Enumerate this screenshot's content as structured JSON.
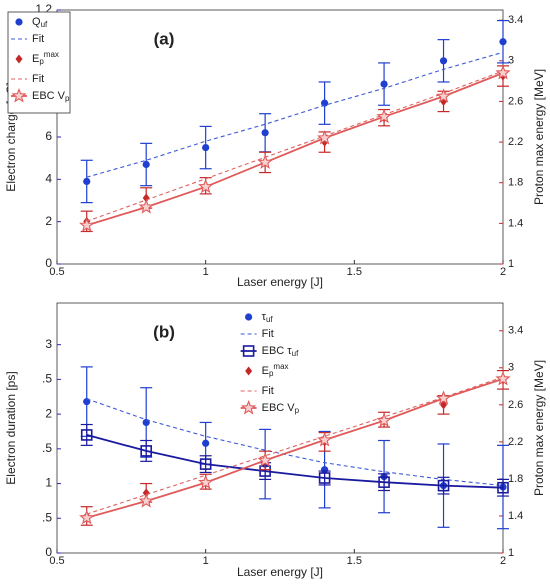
{
  "chart_data": [
    {
      "type": "errorbar",
      "title": "(a)",
      "xlabel": "Laser energy [J]",
      "ylabel": "Electron charge [nC]",
      "y2label": "Proton max energy [MeV]",
      "y_color": "#2a2ab8",
      "y2_color": "#c62828",
      "x": [
        0.6,
        0.8,
        1,
        1.2,
        1.4,
        1.6,
        1.8,
        2
      ],
      "xlim": [
        0.5,
        2
      ],
      "xticks": [
        0.5,
        1,
        1.5,
        2
      ],
      "ylim": [
        0,
        1.2
      ],
      "yticks": [
        0,
        {
          "value": 0.2,
          "label": "2"
        },
        {
          "value": 0.4,
          "label": "4"
        },
        {
          "value": 0.6,
          "label": "6"
        },
        {
          "value": 0.8,
          "label": "8"
        },
        1,
        1.2
      ],
      "y2lim": [
        1,
        3.5
      ],
      "y2ticks": [
        1,
        1.4,
        1.8,
        2.2,
        2.6,
        3,
        3.4
      ],
      "legend": "upper left",
      "legend_frame": true,
      "series": [
        {
          "name": "Q_uf",
          "color": "#1f3fd0",
          "marker": "circle",
          "line": "none",
          "values": [
            0.39,
            0.47,
            0.55,
            0.62,
            0.76,
            0.85,
            0.96,
            1.05
          ],
          "errors": [
            0.1,
            0.1,
            0.1,
            0.09,
            0.1,
            0.1,
            0.1,
            0.1
          ]
        },
        {
          "name": "Fit",
          "color": "#3d5bd6",
          "marker": "none",
          "line": "dashed",
          "values": [
            0.41,
            0.49,
            0.58,
            0.66,
            0.75,
            0.83,
            0.92,
            1.0
          ]
        },
        {
          "name": "E_p^max",
          "color": "#c62828",
          "marker": "diamond",
          "line": "none",
          "axis": "y2",
          "values": [
            1.42,
            1.65,
            1.77,
            2.0,
            2.2,
            2.44,
            2.6,
            2.85
          ],
          "errors": [
            0.1,
            0.1,
            0.08,
            0.1,
            0.1,
            0.08,
            0.1,
            0.1
          ]
        },
        {
          "name": "Fit",
          "color": "#e06060",
          "marker": "none",
          "line": "dashed",
          "axis": "y2",
          "values": [
            1.42,
            1.63,
            1.84,
            2.05,
            2.26,
            2.47,
            2.68,
            2.9
          ]
        },
        {
          "name": "EBC V_p",
          "color": "#e05a5a",
          "marker": "star",
          "line": "solid",
          "axis": "y2",
          "values": [
            1.38,
            1.56,
            1.76,
            2.0,
            2.24,
            2.45,
            2.65,
            2.88
          ]
        }
      ]
    },
    {
      "type": "errorbar",
      "title": "(b)",
      "xlabel": "Laser energy [J]",
      "ylabel": "Electron duration  [ps]",
      "y2label": "Proton max energy [MeV]",
      "y_color": "#2a2ab8",
      "y2_color": "#c62828",
      "x": [
        0.6,
        0.8,
        1,
        1.2,
        1.4,
        1.6,
        1.8,
        2
      ],
      "xlim": [
        0.5,
        2
      ],
      "xticks": [
        0.5,
        1,
        1.5,
        2
      ],
      "ylim": [
        0,
        3.6
      ],
      "yticks": [
        0,
        {
          "value": 0.5,
          "label": ".5"
        },
        1,
        {
          "value": 1.5,
          "label": ".5"
        },
        2,
        {
          "value": 2.5,
          "label": ".5"
        },
        3
      ],
      "y2lim": [
        1,
        3.7
      ],
      "y2ticks": [
        1,
        1.4,
        1.8,
        2.2,
        2.6,
        3,
        3.4
      ],
      "legend": "upper center",
      "legend_frame": false,
      "series": [
        {
          "name": "τ_uf",
          "color": "#1f3fd0",
          "marker": "circle",
          "line": "none",
          "values": [
            2.18,
            1.88,
            1.58,
            1.28,
            1.2,
            1.1,
            0.97,
            0.95
          ],
          "errors": [
            0.5,
            0.5,
            0.3,
            0.5,
            0.55,
            0.52,
            0.6,
            0.6
          ]
        },
        {
          "name": "Fit",
          "color": "#3d5bd6",
          "marker": "none",
          "line": "dashed",
          "values": [
            2.22,
            1.92,
            1.68,
            1.48,
            1.3,
            1.17,
            1.06,
            0.97
          ]
        },
        {
          "name": "EBC τ_uf",
          "color": "#1a1aa0",
          "marker": "square",
          "line": "solid",
          "values": [
            1.7,
            1.47,
            1.28,
            1.18,
            1.08,
            1.02,
            0.97,
            0.94
          ],
          "errors": [
            0.15,
            0.15,
            0.12,
            0.12,
            0.1,
            0.12,
            0.12,
            0.12
          ]
        },
        {
          "name": "E_p^max",
          "color": "#c62828",
          "marker": "diamond",
          "line": "none",
          "axis": "y2",
          "values": [
            1.4,
            1.65,
            1.77,
            2.0,
            2.2,
            2.44,
            2.6,
            2.87
          ],
          "errors": [
            0.1,
            0.1,
            0.08,
            0.1,
            0.1,
            0.08,
            0.1,
            0.1
          ]
        },
        {
          "name": "Fit",
          "color": "#e06060",
          "marker": "none",
          "line": "dashed",
          "axis": "y2",
          "values": [
            1.42,
            1.63,
            1.84,
            2.05,
            2.26,
            2.47,
            2.68,
            2.9
          ]
        },
        {
          "name": "EBC V_p",
          "color": "#e05a5a",
          "marker": "star",
          "line": "solid",
          "axis": "y2",
          "values": [
            1.38,
            1.56,
            1.76,
            2.0,
            2.22,
            2.43,
            2.67,
            2.88
          ]
        }
      ]
    }
  ]
}
